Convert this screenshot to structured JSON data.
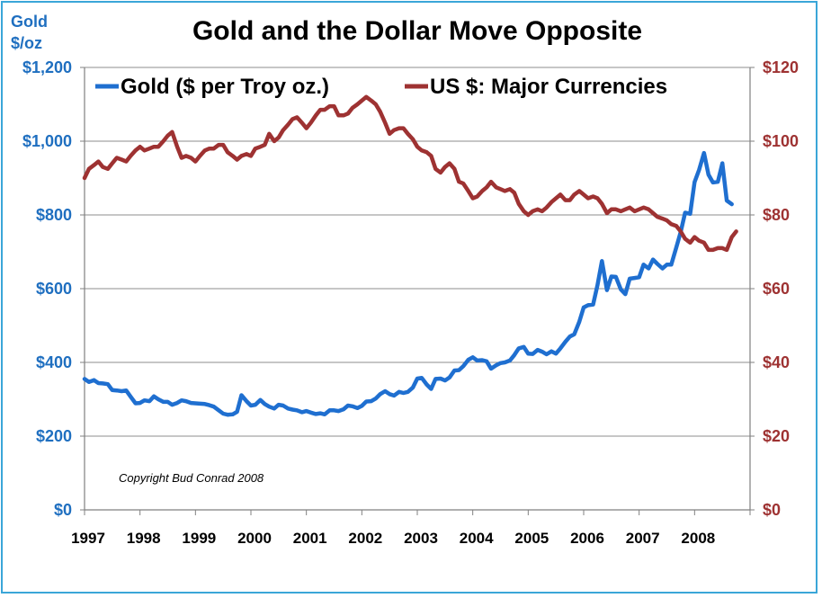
{
  "chart_data": {
    "type": "line",
    "title": "Gold and the Dollar Move Opposite",
    "y_left_label_line1": "Gold",
    "y_left_label_line2": "$/oz",
    "annotation": "Copyright Bud Conrad  2008",
    "x_ticks": [
      "1997",
      "1998",
      "1999",
      "2000",
      "2001",
      "2002",
      "2003",
      "2004",
      "2005",
      "2006",
      "2007",
      "2008"
    ],
    "x_range": [
      1997,
      2009
    ],
    "y_left": {
      "ticks": [
        "$0",
        "$200",
        "$400",
        "$600",
        "$800",
        "$1,000",
        "$1,200"
      ],
      "range": [
        0,
        1200
      ]
    },
    "y_right": {
      "ticks": [
        "$0",
        "$20",
        "$40",
        "$60",
        "$80",
        "$100",
        "$120"
      ],
      "range": [
        0,
        120
      ]
    },
    "grid": true,
    "legend_position": "top",
    "series": [
      {
        "name": "Gold ($ per Troy oz.)",
        "axis": "left",
        "color": "#1f6fd0",
        "points": [
          [
            1997.0,
            355
          ],
          [
            1997.08,
            347
          ],
          [
            1997.17,
            352
          ],
          [
            1997.25,
            344
          ],
          [
            1997.33,
            343
          ],
          [
            1997.42,
            341
          ],
          [
            1997.5,
            325
          ],
          [
            1997.58,
            324
          ],
          [
            1997.67,
            322
          ],
          [
            1997.75,
            324
          ],
          [
            1997.83,
            307
          ],
          [
            1997.92,
            289
          ],
          [
            1998.0,
            290
          ],
          [
            1998.08,
            297
          ],
          [
            1998.17,
            295
          ],
          [
            1998.25,
            308
          ],
          [
            1998.33,
            300
          ],
          [
            1998.42,
            293
          ],
          [
            1998.5,
            293
          ],
          [
            1998.58,
            285
          ],
          [
            1998.67,
            290
          ],
          [
            1998.75,
            297
          ],
          [
            1998.83,
            295
          ],
          [
            1998.92,
            290
          ],
          [
            1999.0,
            289
          ],
          [
            1999.08,
            288
          ],
          [
            1999.17,
            287
          ],
          [
            1999.25,
            284
          ],
          [
            1999.33,
            280
          ],
          [
            1999.42,
            270
          ],
          [
            1999.5,
            261
          ],
          [
            1999.58,
            258
          ],
          [
            1999.67,
            259
          ],
          [
            1999.75,
            266
          ],
          [
            1999.83,
            311
          ],
          [
            1999.92,
            295
          ],
          [
            2000.0,
            283
          ],
          [
            2000.08,
            285
          ],
          [
            2000.17,
            298
          ],
          [
            2000.25,
            287
          ],
          [
            2000.33,
            280
          ],
          [
            2000.42,
            275
          ],
          [
            2000.5,
            285
          ],
          [
            2000.58,
            283
          ],
          [
            2000.67,
            275
          ],
          [
            2000.75,
            272
          ],
          [
            2000.83,
            270
          ],
          [
            2000.92,
            265
          ],
          [
            2001.0,
            268
          ],
          [
            2001.08,
            264
          ],
          [
            2001.17,
            260
          ],
          [
            2001.25,
            262
          ],
          [
            2001.33,
            259
          ],
          [
            2001.42,
            270
          ],
          [
            2001.5,
            270
          ],
          [
            2001.58,
            268
          ],
          [
            2001.67,
            273
          ],
          [
            2001.75,
            283
          ],
          [
            2001.83,
            281
          ],
          [
            2001.92,
            276
          ],
          [
            2002.0,
            282
          ],
          [
            2002.08,
            294
          ],
          [
            2002.17,
            295
          ],
          [
            2002.25,
            302
          ],
          [
            2002.33,
            314
          ],
          [
            2002.42,
            322
          ],
          [
            2002.5,
            314
          ],
          [
            2002.58,
            310
          ],
          [
            2002.67,
            320
          ],
          [
            2002.75,
            317
          ],
          [
            2002.83,
            320
          ],
          [
            2002.92,
            332
          ],
          [
            2003.0,
            356
          ],
          [
            2003.08,
            358
          ],
          [
            2003.17,
            340
          ],
          [
            2003.25,
            328
          ],
          [
            2003.33,
            355
          ],
          [
            2003.42,
            356
          ],
          [
            2003.5,
            351
          ],
          [
            2003.58,
            359
          ],
          [
            2003.67,
            378
          ],
          [
            2003.75,
            379
          ],
          [
            2003.83,
            390
          ],
          [
            2003.92,
            407
          ],
          [
            2004.0,
            414
          ],
          [
            2004.08,
            405
          ],
          [
            2004.17,
            406
          ],
          [
            2004.25,
            403
          ],
          [
            2004.33,
            383
          ],
          [
            2004.42,
            392
          ],
          [
            2004.5,
            398
          ],
          [
            2004.58,
            400
          ],
          [
            2004.67,
            405
          ],
          [
            2004.75,
            420
          ],
          [
            2004.83,
            438
          ],
          [
            2004.92,
            442
          ],
          [
            2005.0,
            424
          ],
          [
            2005.08,
            423
          ],
          [
            2005.17,
            434
          ],
          [
            2005.25,
            429
          ],
          [
            2005.33,
            422
          ],
          [
            2005.42,
            430
          ],
          [
            2005.5,
            424
          ],
          [
            2005.58,
            438
          ],
          [
            2005.67,
            456
          ],
          [
            2005.75,
            470
          ],
          [
            2005.83,
            476
          ],
          [
            2005.92,
            510
          ],
          [
            2006.0,
            549
          ],
          [
            2006.08,
            555
          ],
          [
            2006.17,
            557
          ],
          [
            2006.25,
            610
          ],
          [
            2006.33,
            675
          ],
          [
            2006.42,
            596
          ],
          [
            2006.5,
            633
          ],
          [
            2006.58,
            632
          ],
          [
            2006.67,
            598
          ],
          [
            2006.75,
            585
          ],
          [
            2006.83,
            627
          ],
          [
            2006.92,
            629
          ],
          [
            2007.0,
            631
          ],
          [
            2007.08,
            665
          ],
          [
            2007.17,
            655
          ],
          [
            2007.25,
            679
          ],
          [
            2007.33,
            667
          ],
          [
            2007.42,
            655
          ],
          [
            2007.5,
            665
          ],
          [
            2007.58,
            665
          ],
          [
            2007.67,
            712
          ],
          [
            2007.75,
            754
          ],
          [
            2007.83,
            806
          ],
          [
            2007.92,
            803
          ],
          [
            2008.0,
            889
          ],
          [
            2008.08,
            922
          ],
          [
            2008.17,
            968
          ],
          [
            2008.25,
            909
          ],
          [
            2008.33,
            888
          ],
          [
            2008.42,
            890
          ],
          [
            2008.5,
            940
          ],
          [
            2008.58,
            839
          ],
          [
            2008.67,
            829
          ]
        ]
      },
      {
        "name": "US $: Major Currencies",
        "axis": "right",
        "color": "#9e3232",
        "points": [
          [
            1997.0,
            90
          ],
          [
            1997.08,
            92.5
          ],
          [
            1997.17,
            93.5
          ],
          [
            1997.25,
            94.5
          ],
          [
            1997.33,
            93
          ],
          [
            1997.42,
            92.5
          ],
          [
            1997.5,
            94
          ],
          [
            1997.58,
            95.5
          ],
          [
            1997.67,
            95
          ],
          [
            1997.75,
            94.5
          ],
          [
            1997.83,
            96
          ],
          [
            1997.92,
            97.5
          ],
          [
            1998.0,
            98.5
          ],
          [
            1998.08,
            97.5
          ],
          [
            1998.17,
            98
          ],
          [
            1998.25,
            98.5
          ],
          [
            1998.33,
            98.5
          ],
          [
            1998.42,
            100
          ],
          [
            1998.5,
            101.5
          ],
          [
            1998.58,
            102.5
          ],
          [
            1998.67,
            98.5
          ],
          [
            1998.75,
            95.5
          ],
          [
            1998.83,
            96
          ],
          [
            1998.92,
            95.5
          ],
          [
            1999.0,
            94.5
          ],
          [
            1999.08,
            96
          ],
          [
            1999.17,
            97.5
          ],
          [
            1999.25,
            98
          ],
          [
            1999.33,
            98
          ],
          [
            1999.42,
            99
          ],
          [
            1999.5,
            99
          ],
          [
            1999.58,
            97
          ],
          [
            1999.67,
            96
          ],
          [
            1999.75,
            95
          ],
          [
            1999.83,
            96
          ],
          [
            1999.92,
            96.5
          ],
          [
            2000.0,
            96
          ],
          [
            2000.08,
            98
          ],
          [
            2000.17,
            98.5
          ],
          [
            2000.25,
            99
          ],
          [
            2000.33,
            102
          ],
          [
            2000.42,
            100
          ],
          [
            2000.5,
            101
          ],
          [
            2000.58,
            103
          ],
          [
            2000.67,
            104.5
          ],
          [
            2000.75,
            106
          ],
          [
            2000.83,
            106.5
          ],
          [
            2000.92,
            105
          ],
          [
            2001.0,
            103.5
          ],
          [
            2001.08,
            105
          ],
          [
            2001.17,
            107
          ],
          [
            2001.25,
            108.5
          ],
          [
            2001.33,
            108.5
          ],
          [
            2001.42,
            109.5
          ],
          [
            2001.5,
            109.5
          ],
          [
            2001.58,
            107
          ],
          [
            2001.67,
            107
          ],
          [
            2001.75,
            107.5
          ],
          [
            2001.83,
            109
          ],
          [
            2001.92,
            110
          ],
          [
            2002.0,
            111
          ],
          [
            2002.08,
            112
          ],
          [
            2002.17,
            111
          ],
          [
            2002.25,
            110
          ],
          [
            2002.33,
            108
          ],
          [
            2002.42,
            105
          ],
          [
            2002.5,
            102
          ],
          [
            2002.58,
            103
          ],
          [
            2002.67,
            103.5
          ],
          [
            2002.75,
            103.5
          ],
          [
            2002.83,
            102
          ],
          [
            2002.92,
            100.5
          ],
          [
            2003.0,
            98.5
          ],
          [
            2003.08,
            97.5
          ],
          [
            2003.17,
            97
          ],
          [
            2003.25,
            96
          ],
          [
            2003.33,
            92.5
          ],
          [
            2003.42,
            91.5
          ],
          [
            2003.5,
            93
          ],
          [
            2003.58,
            94
          ],
          [
            2003.67,
            92.5
          ],
          [
            2003.75,
            89
          ],
          [
            2003.83,
            88.5
          ],
          [
            2003.92,
            86.5
          ],
          [
            2004.0,
            84.5
          ],
          [
            2004.08,
            85
          ],
          [
            2004.17,
            86.5
          ],
          [
            2004.25,
            87.5
          ],
          [
            2004.33,
            89
          ],
          [
            2004.42,
            87.5
          ],
          [
            2004.5,
            87
          ],
          [
            2004.58,
            86.5
          ],
          [
            2004.67,
            87
          ],
          [
            2004.75,
            86
          ],
          [
            2004.83,
            83
          ],
          [
            2004.92,
            81
          ],
          [
            2005.0,
            80
          ],
          [
            2005.08,
            81
          ],
          [
            2005.17,
            81.5
          ],
          [
            2005.25,
            81
          ],
          [
            2005.33,
            82
          ],
          [
            2005.42,
            83.5
          ],
          [
            2005.5,
            84.5
          ],
          [
            2005.58,
            85.5
          ],
          [
            2005.67,
            84
          ],
          [
            2005.75,
            84
          ],
          [
            2005.83,
            85.5
          ],
          [
            2005.92,
            86.5
          ],
          [
            2006.0,
            85.5
          ],
          [
            2006.08,
            84.5
          ],
          [
            2006.17,
            85
          ],
          [
            2006.25,
            84.5
          ],
          [
            2006.33,
            83
          ],
          [
            2006.42,
            80.5
          ],
          [
            2006.5,
            81.5
          ],
          [
            2006.58,
            81.5
          ],
          [
            2006.67,
            81
          ],
          [
            2006.75,
            81.5
          ],
          [
            2006.83,
            82
          ],
          [
            2006.92,
            81
          ],
          [
            2007.0,
            81.5
          ],
          [
            2007.08,
            82
          ],
          [
            2007.17,
            81.5
          ],
          [
            2007.25,
            80.5
          ],
          [
            2007.33,
            79.5
          ],
          [
            2007.42,
            79
          ],
          [
            2007.5,
            78.5
          ],
          [
            2007.58,
            77.5
          ],
          [
            2007.67,
            77
          ],
          [
            2007.75,
            75.5
          ],
          [
            2007.83,
            73.5
          ],
          [
            2007.92,
            72.5
          ],
          [
            2008.0,
            74
          ],
          [
            2008.08,
            73
          ],
          [
            2008.17,
            72.5
          ],
          [
            2008.25,
            70.5
          ],
          [
            2008.33,
            70.5
          ],
          [
            2008.42,
            71
          ],
          [
            2008.5,
            71
          ],
          [
            2008.58,
            70.5
          ],
          [
            2008.67,
            74
          ],
          [
            2008.75,
            75.5
          ]
        ]
      }
    ]
  }
}
